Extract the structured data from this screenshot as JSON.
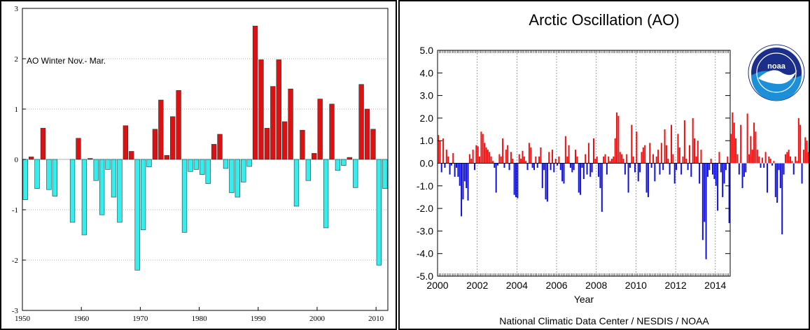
{
  "chart_data": [
    {
      "type": "bar",
      "title": "",
      "annotation": "AO Winter Nov.- Mar.",
      "xlabel": "",
      "ylabel": "",
      "ylim": [
        -3,
        3
      ],
      "xlim": [
        1950,
        2012
      ],
      "x_ticks": [
        "1950",
        "1960",
        "1970",
        "1980",
        "1990",
        "2000",
        "2010"
      ],
      "y_ticks": [
        "-3",
        "-2",
        "-1",
        "0",
        "1",
        "2",
        "3"
      ],
      "grid": true,
      "colors": {
        "positive": "#dd1111",
        "negative": "#33eeee"
      },
      "series": [
        {
          "x": [
            1950,
            1951,
            1952,
            1953,
            1954,
            1955,
            1956,
            1957,
            1958,
            1959,
            1960,
            1961,
            1962,
            1963,
            1964,
            1965,
            1966,
            1967,
            1968,
            1969,
            1970,
            1971,
            1972,
            1973,
            1974,
            1975,
            1976,
            1977,
            1978,
            1979,
            1980,
            1981,
            1982,
            1983,
            1984,
            1985,
            1986,
            1987,
            1988,
            1989,
            1990,
            1991,
            1992,
            1993,
            1994,
            1995,
            1996,
            1997,
            1998,
            1999,
            2000,
            2001,
            2002,
            2003,
            2004,
            2005,
            2006,
            2007,
            2008,
            2009,
            2010,
            2011
          ],
          "values": [
            -0.8,
            0.05,
            -0.58,
            0.62,
            -0.6,
            -0.73,
            0,
            0,
            -1.25,
            0.42,
            -1.5,
            0.02,
            -0.42,
            -1.1,
            -0.2,
            -0.75,
            -1.25,
            0.67,
            0.16,
            -2.2,
            -1.4,
            -0.15,
            0.6,
            1.18,
            0.08,
            0.85,
            1.37,
            -1.45,
            -0.24,
            -0.2,
            -0.3,
            -0.48,
            0.3,
            0.5,
            -0.18,
            -0.66,
            -0.75,
            -0.45,
            -0.14,
            2.65,
            1.98,
            0.62,
            1.45,
            1.98,
            0.75,
            1.4,
            -0.93,
            0.58,
            -0.42,
            0.12,
            1.2,
            -1.36,
            1.1,
            -0.22,
            -0.12,
            0.04,
            -0.56,
            1.49,
            1.0,
            0.6,
            -2.1,
            -0.58
          ]
        }
      ]
    },
    {
      "type": "bar",
      "title": "Arctic Oscillation (AO)",
      "xlabel": "Year",
      "ylabel": "",
      "ylim": [
        -5.0,
        5.0
      ],
      "xlim": [
        2000,
        2014.75
      ],
      "x_ticks": [
        "2000",
        "2002",
        "2004",
        "2006",
        "2008",
        "2010",
        "2012",
        "2014"
      ],
      "y_ticks": [
        "5.0",
        "4.0",
        "3.0",
        "2.0",
        "1.0",
        "0.0",
        "-1.0",
        "-2.0",
        "-3.0",
        "-4.0",
        "-5.0"
      ],
      "grid": true,
      "colors": {
        "positive": "#ee1111",
        "negative": "#1111dd"
      },
      "series": [
        {
          "start": "2000-01",
          "frequency": "monthly",
          "values": [
            1.25,
            1.0,
            -0.4,
            1.1,
            -0.2,
            0.6,
            0.3,
            -0.5,
            -0.1,
            0.45,
            -0.6,
            -0.2,
            -0.6,
            -1.0,
            -2.35,
            -1.6,
            -0.8,
            -1.1,
            -1.65,
            0.4,
            0.2,
            0.6,
            -0.3,
            0.8,
            0.75,
            0.3,
            1.4,
            1.3,
            0.9,
            0.7,
            0.6,
            0.5,
            0.3,
            0.1,
            -0.2,
            -1.3,
            -0.1,
            0.4,
            0.3,
            1.1,
            -0.2,
            0.6,
            0.8,
            -0.3,
            0.5,
            0.2,
            -1.4,
            -1.5,
            -1.55,
            0.4,
            0.2,
            0.55,
            0.3,
            0.1,
            -0.3,
            0.9,
            0.7,
            -0.2,
            -0.3,
            0.3,
            -0.2,
            0.3,
            0.7,
            -1.1,
            -0.3,
            -1.6,
            -1.7,
            0.5,
            -0.3,
            0.6,
            -0.4,
            0.2,
            -0.1,
            0.3,
            -0.3,
            -0.8,
            -0.9,
            1.2,
            0.3,
            0.8,
            -0.2,
            -0.4,
            -0.3,
            0.6,
            0.3,
            -1.3,
            -1.4,
            -0.2,
            -0.7,
            0.4,
            -0.5,
            0.9,
            -0.6,
            -0.4,
            1.1,
            0.2,
            0.3,
            -0.6,
            -1.1,
            -2.15,
            0.3,
            0.4,
            -0.5,
            0.3,
            0.1,
            0.2,
            0.3,
            1.1,
            2.25,
            2.1,
            0.5,
            0.4,
            0.2,
            -0.5,
            0.4,
            -1.3,
            -0.2,
            1.7,
            0.3,
            -0.4,
            1.4,
            -0.8,
            -0.4,
            0.5,
            0.7,
            0.8,
            -1.3,
            -1.5,
            0.9,
            -0.2,
            0.4,
            -0.8,
            0.3,
            0.6,
            -0.5,
            0.9,
            -0.3,
            1.5,
            0.8,
            0.2,
            -0.5,
            1.7,
            0.4,
            -0.9,
            -0.3,
            1.3,
            0.7,
            -0.5,
            0.3,
            1.9,
            0.2,
            -0.3,
            0.8,
            -0.6,
            2.0,
            1.1,
            0.3,
            1.0,
            -0.9,
            0.6,
            -3.4,
            -2.6,
            -4.25,
            -0.6,
            -0.3,
            0.2,
            -0.5,
            -0.7,
            -1.0,
            -2.1,
            0.5,
            -0.4,
            -1.5,
            -0.9,
            -0.3,
            0.3,
            -2.65,
            1.3,
            2.25,
            1.8,
            1.1,
            0.4,
            -0.5,
            1.7,
            -1.1,
            -0.6,
            -0.4,
            2.2,
            0.4,
            1.2,
            0.6,
            1.8,
            1.4,
            0.6,
            0.3,
            -0.2,
            0.25,
            -0.2,
            0.5,
            -1.3,
            0.3,
            0.2,
            -0.1,
            0.1,
            -1.5,
            -1.75,
            -0.3,
            -1.1,
            -3.15,
            -0.5,
            0.4,
            0.5,
            0.6,
            0.3,
            0.1,
            -0.5,
            0.3,
            0.1,
            2.0,
            1.7,
            -0.9,
            0.6,
            1.15,
            1.0,
            0.5,
            0.8,
            -0.5,
            -0.5
          ]
        }
      ],
      "source": "National Climatic Data Center / NESDIS / NOAA"
    }
  ],
  "logo": {
    "text": "noaa",
    "ring_text": "NATIONAL OCEANIC AND ATMOSPHERIC ADMINISTRATION · U.S. DEPARTMENT OF COMMERCE",
    "colors": {
      "ring": "#ffffff",
      "top": "#1b2f8a",
      "bottom": "#1d8fd8"
    }
  }
}
